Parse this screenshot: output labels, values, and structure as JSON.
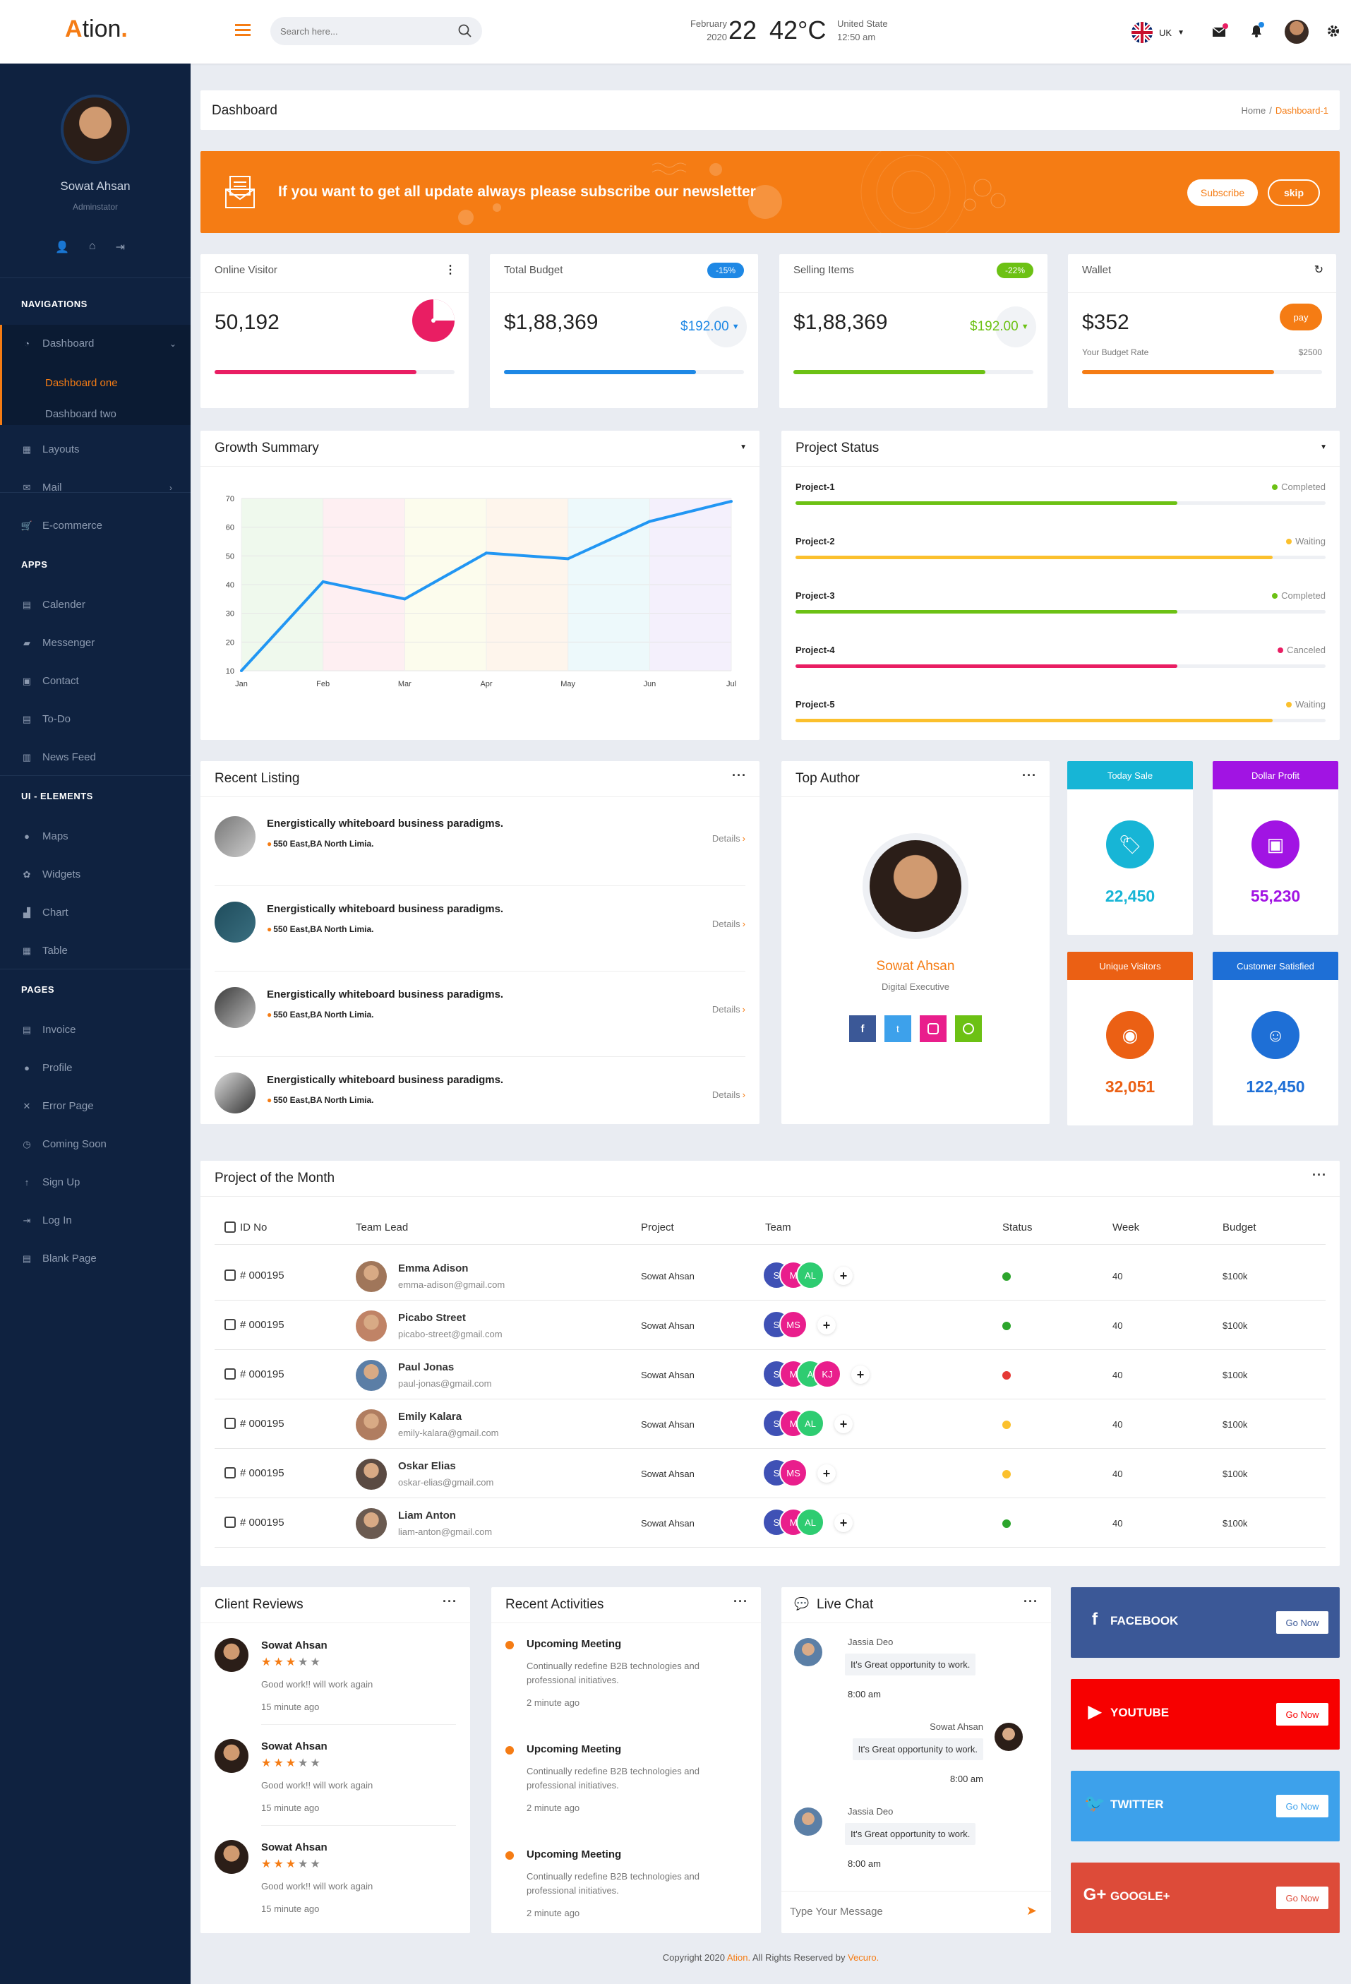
{
  "brand": {
    "logo_a": "A",
    "logo_rest": "tion",
    "logo_dot": "."
  },
  "header": {
    "search_placeholder": "Search here...",
    "date_month": "February",
    "date_year": "2020",
    "date_day": "22",
    "temp": "42",
    "temp_unit": "°C",
    "location": "United State",
    "time": "12:50 am",
    "lang": "UK"
  },
  "sidebar": {
    "name": "Sowat Ahsan",
    "role": "Adminstator",
    "sections": [
      {
        "title": "NAVIGATIONS",
        "items": [
          {
            "label": "Dashboard",
            "icon": "speedometer-icon",
            "active": true,
            "sub": [
              "Dashboard one",
              "Dashboard two"
            ]
          },
          {
            "label": "Layouts",
            "icon": "layout-icon"
          },
          {
            "label": "Mail",
            "icon": "mail-icon",
            "chevron": true
          },
          {
            "label": "E-commerce",
            "icon": "cart-icon"
          }
        ]
      },
      {
        "title": "APPS",
        "items": [
          {
            "label": "Calender",
            "icon": "calendar-icon"
          },
          {
            "label": "Messenger",
            "icon": "chat-icon"
          },
          {
            "label": "Contact",
            "icon": "contact-icon"
          },
          {
            "label": "To-Do",
            "icon": "todo-icon"
          },
          {
            "label": "News Feed",
            "icon": "news-icon"
          }
        ]
      },
      {
        "title": "UI - ELEMENTS",
        "items": [
          {
            "label": "Maps",
            "icon": "map-pin-icon"
          },
          {
            "label": "Widgets",
            "icon": "widgets-icon"
          },
          {
            "label": "Chart",
            "icon": "chart-icon"
          },
          {
            "label": "Table",
            "icon": "table-icon"
          }
        ]
      },
      {
        "title": "PAGES",
        "items": [
          {
            "label": "Invoice",
            "icon": "invoice-icon"
          },
          {
            "label": "Profile",
            "icon": "user-icon"
          },
          {
            "label": "Error Page",
            "icon": "close-icon"
          },
          {
            "label": "Coming Soon",
            "icon": "clock-icon"
          },
          {
            "label": "Sign Up",
            "icon": "arrow-up-icon"
          },
          {
            "label": "Log In",
            "icon": "login-icon"
          },
          {
            "label": "Blank Page",
            "icon": "blank-icon"
          }
        ]
      }
    ]
  },
  "page": {
    "title": "Dashboard",
    "crumb_home": "Home",
    "crumb_sep": "/",
    "crumb_current": "Dashboard-1"
  },
  "newsletter": {
    "text": "If you want to get all update always please subscribe our newsletter",
    "subscribe": "Subscribe",
    "skip": "skip"
  },
  "stats": [
    {
      "title": "Online Visitor",
      "value": "50,192",
      "progress": 0.84,
      "color": "#e91e63"
    },
    {
      "title": "Total Budget",
      "value": "$1,88,369",
      "badge": "-15%",
      "badge_color": "#1e88e5",
      "sub": "$192.00",
      "progress": 0.8,
      "color": "#1e88e5"
    },
    {
      "title": "Selling Items",
      "value": "$1,88,369",
      "badge": "-22%",
      "badge_color": "#6cc114",
      "sub": "$192.00",
      "progress": 0.8,
      "color": "#6cc114"
    },
    {
      "title": "Wallet",
      "value": "$352",
      "btn": "pay",
      "rate_label": "Your Budget Rate",
      "rate_value": "$2500",
      "progress": 0.8,
      "color": "#f57c14"
    }
  ],
  "growth": {
    "title": "Growth Summary"
  },
  "chart_data": {
    "type": "line",
    "title": "Growth Summary",
    "categories": [
      "Jan",
      "Feb",
      "Mar",
      "Apr",
      "May",
      "Jun",
      "Jul"
    ],
    "series": [
      {
        "values": [
          10,
          41,
          35,
          51,
          49,
          62,
          69
        ]
      }
    ],
    "yticks": [
      10,
      20,
      30,
      40,
      50,
      60,
      70
    ],
    "ylim": [
      10,
      70
    ],
    "grid": true,
    "color": "#2196f3"
  },
  "project_status": {
    "title": "Project Status",
    "items": [
      {
        "name": "Project-1",
        "status": "Completed",
        "color": "#6cc114",
        "progress": 0.72
      },
      {
        "name": "Project-2",
        "status": "Waiting",
        "color": "#fbc02d",
        "progress": 0.9
      },
      {
        "name": "Project-3",
        "status": "Completed",
        "color": "#6cc114",
        "progress": 0.72
      },
      {
        "name": "Project-4",
        "status": "Canceled",
        "color": "#e91e63",
        "progress": 0.72
      },
      {
        "name": "Project-5",
        "status": "Waiting",
        "color": "#fbc02d",
        "progress": 0.9
      }
    ]
  },
  "recent_listing": {
    "title": "Recent Listing",
    "items": [
      {
        "title": "Energistically whiteboard business paradigms.",
        "address": "550 East,BA North Limia.",
        "link": "Details"
      },
      {
        "title": "Energistically whiteboard business paradigms.",
        "address": "550 East,BA North Limia.",
        "link": "Details"
      },
      {
        "title": "Energistically whiteboard business paradigms.",
        "address": "550 East,BA North Limia.",
        "link": "Details"
      },
      {
        "title": "Energistically whiteboard business paradigms.",
        "address": "550 East,BA North Limia.",
        "link": "Details"
      }
    ]
  },
  "top_author": {
    "title": "Top Author",
    "name": "Sowat Ahsan",
    "role": "Digital Executive"
  },
  "mini_stats": [
    {
      "title": "Today Sale",
      "value": "22,450",
      "color": "#17b5d6",
      "icon": "tag-icon"
    },
    {
      "title": "Dollar Profit",
      "value": "55,230",
      "color": "#a114e3",
      "icon": "money-icon"
    },
    {
      "title": "Unique Visitors",
      "value": "32,051",
      "color": "#eb6014",
      "icon": "eye-icon"
    },
    {
      "title": "Customer Satisfied",
      "value": "122,450",
      "color": "#1e6fd6",
      "icon": "smile-icon"
    }
  ],
  "project_month": {
    "title": "Project of the Month",
    "headers": [
      "ID No",
      "Team Lead",
      "Project",
      "Team",
      "Status",
      "Week",
      "Budget"
    ],
    "rows": [
      {
        "id": "# 000195",
        "name": "Emma Adison",
        "email": "emma-adison@gmail.com",
        "project": "Sowat Ahsan",
        "team": [
          "S",
          "M",
          "AL"
        ],
        "status": "#2ca52c",
        "week": "40",
        "budget": "$100k"
      },
      {
        "id": "# 000195",
        "name": "Picabo Street",
        "email": "picabo-street@gmail.com",
        "project": "Sowat Ahsan",
        "team": [
          "S",
          "MS"
        ],
        "status": "#2ca52c",
        "week": "40",
        "budget": "$100k"
      },
      {
        "id": "# 000195",
        "name": "Paul Jonas",
        "email": "paul-jonas@gmail.com",
        "project": "Sowat Ahsan",
        "team": [
          "S",
          "M",
          "A",
          "KJ"
        ],
        "status": "#e53935",
        "week": "40",
        "budget": "$100k"
      },
      {
        "id": "# 000195",
        "name": "Emily Kalara",
        "email": "emily-kalara@gmail.com",
        "project": "Sowat Ahsan",
        "team": [
          "S",
          "M",
          "AL"
        ],
        "status": "#fbc02d",
        "week": "40",
        "budget": "$100k"
      },
      {
        "id": "# 000195",
        "name": "Oskar Elias",
        "email": "oskar-elias@gmail.com",
        "project": "Sowat Ahsan",
        "team": [
          "S",
          "MS"
        ],
        "status": "#fbc02d",
        "week": "40",
        "budget": "$100k"
      },
      {
        "id": "# 000195",
        "name": "Liam Anton",
        "email": "liam-anton@gmail.com",
        "project": "Sowat Ahsan",
        "team": [
          "S",
          "M",
          "AL"
        ],
        "status": "#2ca52c",
        "week": "40",
        "budget": "$100k"
      }
    ]
  },
  "reviews": {
    "title": "Client Reviews",
    "items": [
      {
        "name": "Sowat Ahsan",
        "text": "Good work!! will work again",
        "time": "15 minute ago",
        "rating": 3
      },
      {
        "name": "Sowat Ahsan",
        "text": "Good work!! will work again",
        "time": "15 minute ago",
        "rating": 3
      },
      {
        "name": "Sowat Ahsan",
        "text": "Good work!! will work again",
        "time": "15 minute ago",
        "rating": 3
      }
    ]
  },
  "activities": {
    "title": "Recent Activities",
    "items": [
      {
        "title": "Upcoming Meeting",
        "text": "Continually redefine B2B technologies and professional initiatives.",
        "time": "2 minute ago"
      },
      {
        "title": "Upcoming Meeting",
        "text": "Continually redefine B2B technologies and professional initiatives.",
        "time": "2 minute ago"
      },
      {
        "title": "Upcoming Meeting",
        "text": "Continually redefine B2B technologies and professional initiatives.",
        "time": "2 minute ago"
      }
    ]
  },
  "chat": {
    "title": "Live Chat",
    "placeholder": "Type Your Message",
    "messages": [
      {
        "name": "Jassia Deo",
        "text": "It's Great opportunity to work.",
        "time": "8:00 am",
        "side": "left"
      },
      {
        "name": "Sowat Ahsan",
        "text": "It's Great opportunity to work.",
        "time": "8:00 am",
        "side": "right"
      },
      {
        "name": "Jassia Deo",
        "text": "It's Great opportunity to work.",
        "time": "8:00 am",
        "side": "left"
      }
    ]
  },
  "social": [
    {
      "name": "FACEBOOK",
      "btn": "Go Now",
      "color": "#3b5897",
      "icon": "facebook-icon",
      "glyph": "f"
    },
    {
      "name": "YOUTUBE",
      "btn": "Go Now",
      "color": "#f70000",
      "icon": "youtube-icon",
      "glyph": "▶"
    },
    {
      "name": "TWITTER",
      "btn": "Go Now",
      "color": "#3da1eb",
      "icon": "twitter-icon",
      "glyph": "🐦"
    },
    {
      "name": "GOOGLE+",
      "btn": "Go Now",
      "color": "#dd4b39",
      "icon": "google-plus-icon",
      "glyph": "G+"
    }
  ],
  "footer": {
    "pre": "Copyright 2020",
    "brand": "Ation.",
    "mid": "All Rights Reserved by",
    "company": "Vecuro."
  }
}
